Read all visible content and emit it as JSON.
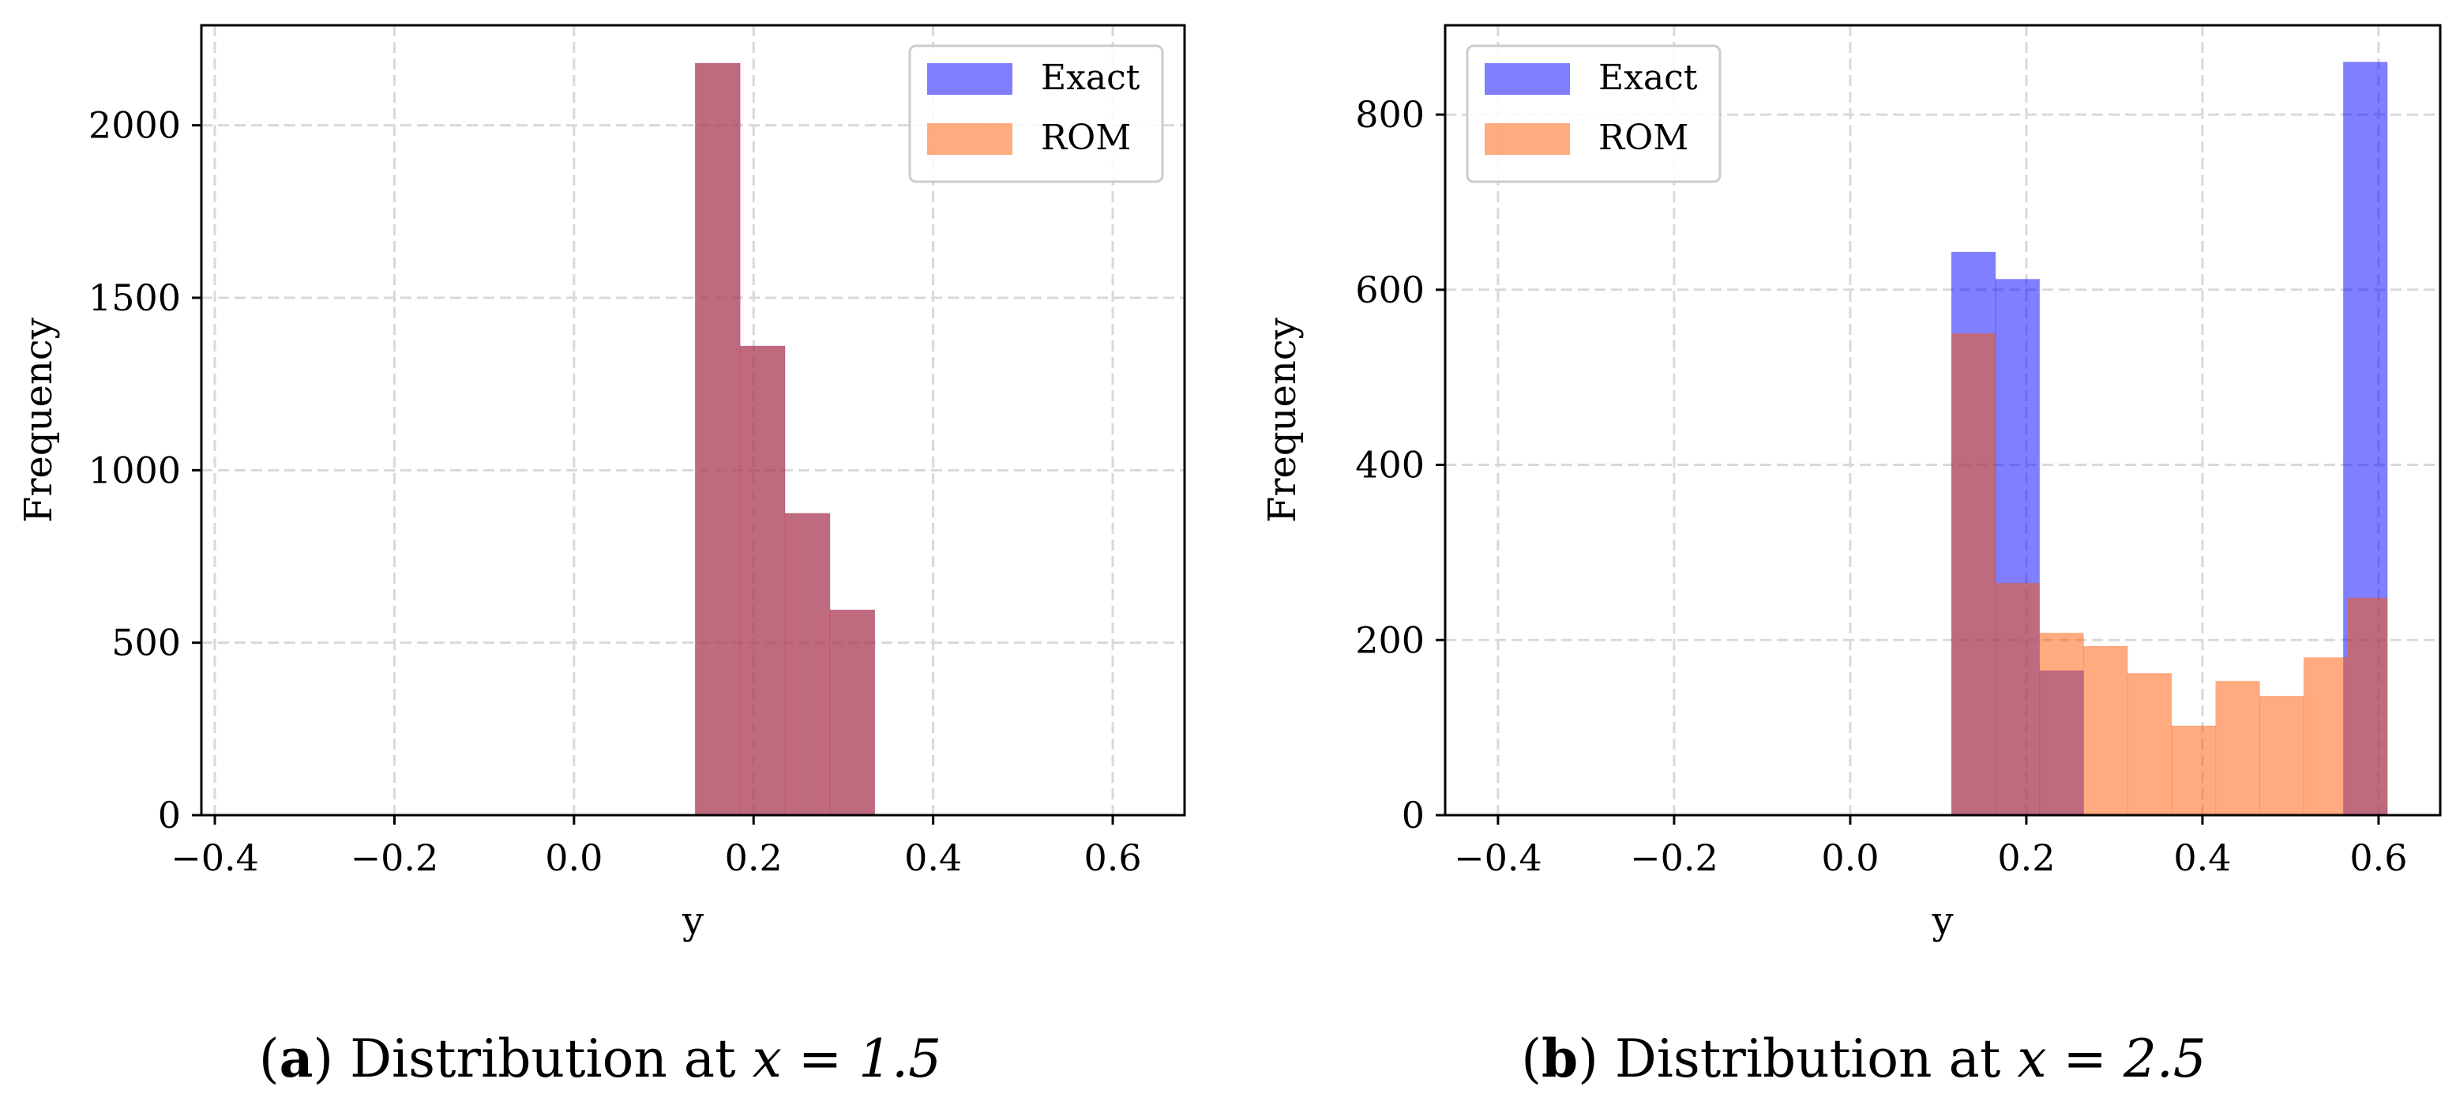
{
  "chart_data": [
    {
      "type": "bar",
      "caption": {
        "label": "a",
        "text": "Distribution at",
        "math": "x = 1.5"
      },
      "xlabel": "y",
      "ylabel": "Frequency",
      "xlim": [
        -0.415,
        0.68
      ],
      "ylim": [
        0,
        2290
      ],
      "xticks": [
        -0.4,
        -0.2,
        0.0,
        0.2,
        0.4,
        0.6
      ],
      "xtick_labels": [
        "−0.4",
        "−0.2",
        "0.0",
        "0.2",
        "0.4",
        "0.6"
      ],
      "yticks": [
        0,
        500,
        1000,
        1500,
        2000
      ],
      "ytick_labels": [
        "0",
        "500",
        "1000",
        "1500",
        "2000"
      ],
      "grid": true,
      "legend_position": "top-right",
      "colors": {
        "Exact": "#0000ff",
        "ROM": "#ff5600",
        "overlap": "#b8607a"
      },
      "series": [
        {
          "name": "Exact",
          "bins": [
            {
              "x0": 0.135,
              "x1": 0.185,
              "value": 2180
            },
            {
              "x0": 0.185,
              "x1": 0.235,
              "value": 1360
            },
            {
              "x0": 0.235,
              "x1": 0.285,
              "value": 875
            },
            {
              "x0": 0.285,
              "x1": 0.335,
              "value": 595
            }
          ]
        },
        {
          "name": "ROM",
          "bins": [
            {
              "x0": 0.135,
              "x1": 0.185,
              "value": 2180
            },
            {
              "x0": 0.185,
              "x1": 0.235,
              "value": 1360
            },
            {
              "x0": 0.235,
              "x1": 0.285,
              "value": 875
            },
            {
              "x0": 0.285,
              "x1": 0.335,
              "value": 595
            }
          ]
        }
      ]
    },
    {
      "type": "bar",
      "caption": {
        "label": "b",
        "text": "Distribution at",
        "math": "x = 2.5"
      },
      "xlabel": "y",
      "ylabel": "Frequency",
      "xlim": [
        -0.46,
        0.67
      ],
      "ylim": [
        0,
        902
      ],
      "xticks": [
        -0.4,
        -0.2,
        0.0,
        0.2,
        0.4,
        0.6
      ],
      "xtick_labels": [
        "−0.4",
        "−0.2",
        "0.0",
        "0.2",
        "0.4",
        "0.6"
      ],
      "yticks": [
        0,
        200,
        400,
        600,
        800
      ],
      "ytick_labels": [
        "0",
        "200",
        "400",
        "600",
        "800"
      ],
      "grid": true,
      "legend_position": "top-left",
      "colors": {
        "Exact": "#0000ff",
        "ROM": "#ff5600",
        "overlap": "#b8607a"
      },
      "series": [
        {
          "name": "Exact",
          "bins": [
            {
              "x0": 0.115,
              "x1": 0.165,
              "value": 643
            },
            {
              "x0": 0.165,
              "x1": 0.215,
              "value": 612
            },
            {
              "x0": 0.215,
              "x1": 0.265,
              "value": 165
            },
            {
              "x0": 0.56,
              "x1": 0.61,
              "value": 860
            }
          ]
        },
        {
          "name": "ROM",
          "bins": [
            {
              "x0": 0.115,
              "x1": 0.165,
              "value": 550
            },
            {
              "x0": 0.165,
              "x1": 0.215,
              "value": 265
            },
            {
              "x0": 0.215,
              "x1": 0.265,
              "value": 208
            },
            {
              "x0": 0.265,
              "x1": 0.315,
              "value": 193
            },
            {
              "x0": 0.315,
              "x1": 0.365,
              "value": 162
            },
            {
              "x0": 0.365,
              "x1": 0.415,
              "value": 102
            },
            {
              "x0": 0.415,
              "x1": 0.465,
              "value": 153
            },
            {
              "x0": 0.465,
              "x1": 0.515,
              "value": 136
            },
            {
              "x0": 0.515,
              "x1": 0.565,
              "value": 180
            },
            {
              "x0": 0.565,
              "x1": 0.61,
              "value": 248
            }
          ]
        }
      ]
    }
  ]
}
